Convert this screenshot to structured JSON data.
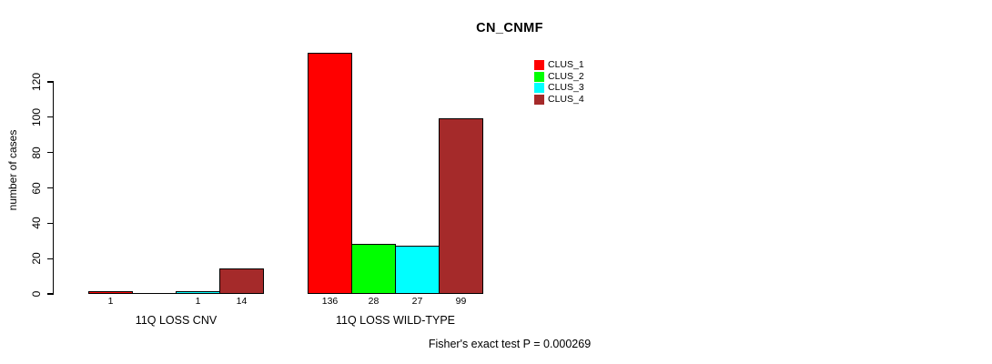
{
  "chart_data": {
    "type": "bar",
    "title": "CN_CNMF",
    "ylabel": "number of cases",
    "xlabel": "",
    "categories": [
      "11Q LOSS CNV",
      "11Q LOSS WILD-TYPE"
    ],
    "series": [
      {
        "name": "CLUS_1",
        "color": "#FF0000",
        "values": [
          1,
          136
        ]
      },
      {
        "name": "CLUS_2",
        "color": "#00FF00",
        "values": [
          0,
          28
        ]
      },
      {
        "name": "CLUS_3",
        "color": "#00FFFF",
        "values": [
          1,
          27
        ]
      },
      {
        "name": "CLUS_4",
        "color": "#A52A2A",
        "values": [
          14,
          99
        ]
      }
    ],
    "bar_value_labels": [
      [
        "1",
        "",
        "1",
        "14"
      ],
      [
        "136",
        "28",
        "27",
        "99"
      ]
    ],
    "yticks": [
      0,
      20,
      40,
      60,
      80,
      100,
      120
    ],
    "ylim": [
      0,
      136
    ],
    "grid": false,
    "legend_position": "top-right"
  },
  "footer": {
    "note": "Fisher's exact test P = 0.000269"
  }
}
